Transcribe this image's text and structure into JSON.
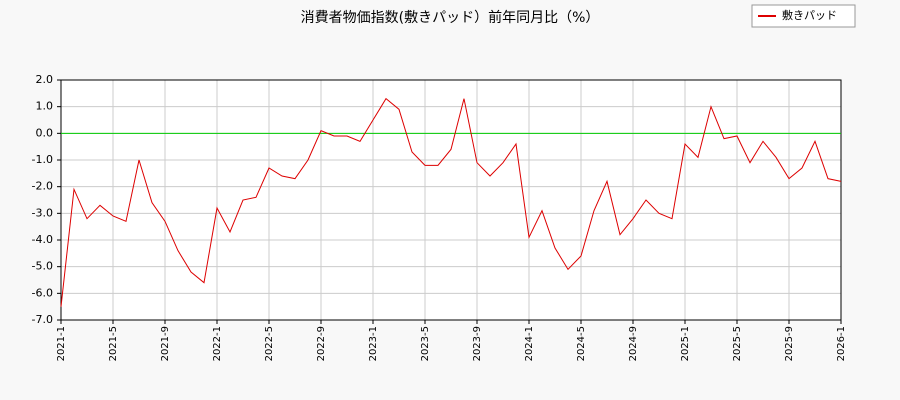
{
  "chart_data": {
    "type": "line",
    "title": "消費者物価指数(敷きパッド）前年同月比（%）",
    "categories": [
      "2021-1",
      null,
      null,
      null,
      "2021-5",
      null,
      null,
      null,
      "2021-9",
      null,
      null,
      null,
      "2022-1",
      null,
      null,
      null,
      "2022-5",
      null,
      null,
      null,
      "2022-9",
      null,
      null,
      null,
      "2023-1",
      null,
      null,
      null,
      "2023-5",
      null,
      null,
      null,
      "2023-9",
      null,
      null,
      null,
      "2024-1",
      null,
      null,
      null,
      "2024-5",
      null,
      null,
      null,
      "2024-9",
      null,
      null,
      null,
      "2025-1",
      null,
      null,
      null,
      "2025-5",
      null,
      null,
      null,
      "2025-9",
      null,
      null,
      null,
      "2026-1"
    ],
    "series": [
      {
        "name": "敷きパッド",
        "color": "#dd0000",
        "values": [
          -6.5,
          -2.1,
          -3.2,
          -2.7,
          -3.1,
          -3.3,
          -1.0,
          -2.6,
          -3.3,
          -4.4,
          -5.2,
          -5.6,
          -2.8,
          -3.7,
          -2.5,
          -2.4,
          -1.3,
          -1.6,
          -1.7,
          -1.0,
          0.1,
          -0.1,
          -0.1,
          -0.3,
          0.5,
          1.3,
          0.9,
          -0.7,
          -1.2,
          -1.2,
          -0.6,
          1.3,
          -1.1,
          -1.6,
          -1.1,
          -0.4,
          -3.9,
          -2.9,
          -4.3,
          -5.1,
          -4.6,
          -2.9,
          -1.8,
          -3.8,
          -3.2,
          -2.5,
          -3.0,
          -3.2,
          -0.4,
          -0.9,
          1.0,
          -0.2,
          -0.1,
          -1.1,
          -0.3,
          -0.9,
          -1.7,
          -1.3,
          -0.3,
          -1.7,
          -1.8
        ]
      }
    ],
    "ylim": [
      -7,
      2
    ],
    "yticks": [
      {
        "value": 2,
        "label": "2.0"
      },
      {
        "value": 1,
        "label": "1.0"
      },
      {
        "value": 0,
        "label": "0.0"
      },
      {
        "value": -1,
        "label": "-1.0"
      },
      {
        "value": -2,
        "label": "-2.0"
      },
      {
        "value": -3,
        "label": "-3.0"
      },
      {
        "value": -4,
        "label": "-4.0"
      },
      {
        "value": -5,
        "label": "-5.0"
      },
      {
        "value": -6,
        "label": "-6.0"
      },
      {
        "value": -7,
        "label": "-7.0"
      }
    ],
    "reference_line": {
      "value": 0,
      "color": "#00cc00"
    },
    "grid": true,
    "legend": "top-right"
  }
}
